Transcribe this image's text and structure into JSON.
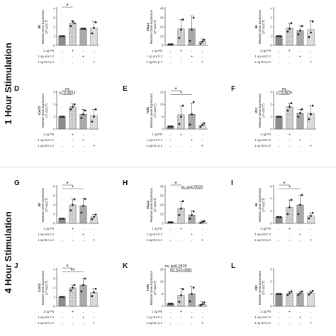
{
  "figure": {
    "row_labels": [
      "1 Hour Stimulation",
      "4 Hour Stimulation"
    ],
    "treatments": [
      "1 ug PN",
      "1 ug Ara h 2",
      "1 ug Der p 2"
    ],
    "treatment_signs": [
      [
        "-",
        "+",
        "-",
        "-"
      ],
      [
        "-",
        "-",
        "+",
        "-"
      ],
      [
        "-",
        "-",
        "-",
        "+"
      ]
    ],
    "y_axis_title": "Relative Gene Expression",
    "y_axis_unit": "(2^-ΔΔCT)",
    "bar_colors": [
      "#8c8c8c",
      "#d6d6d6",
      "#a9a9a9",
      "#e4e4e4"
    ],
    "bar_patterns": [
      "solid",
      "dots",
      "solid",
      "hatch"
    ]
  },
  "chart_data": [
    {
      "panel": "A",
      "letter": "",
      "gene": "Il8",
      "type": "bar",
      "ylim": [
        0,
        4
      ],
      "yticks": [
        "0",
        "1",
        "2",
        "3",
        "4"
      ],
      "values": [
        1.0,
        2.4,
        1.8,
        1.9
      ],
      "errors": [
        0.05,
        0.3,
        0.1,
        0.7
      ],
      "points": [
        [
          1.0,
          1.0,
          1.0
        ],
        [
          2.1,
          2.6,
          2.4
        ],
        [
          1.8,
          1.8,
          1.8
        ],
        [
          1.3,
          1.9,
          2.5
        ]
      ],
      "sig": [
        {
          "from": 0,
          "to": 1,
          "label": "*"
        }
      ]
    },
    {
      "panel": "B",
      "letter": "",
      "gene": "Mcp1",
      "type": "bar",
      "ylim": [
        0,
        40
      ],
      "yticks": [
        "0",
        "10",
        "20",
        "30",
        "40"
      ],
      "values": [
        1.0,
        18.0,
        18.0,
        4.0
      ],
      "errors": [
        0.2,
        10.0,
        14.0,
        3.0
      ],
      "points": [
        [
          1.0,
          1.0,
          1.0
        ],
        [
          8.0,
          17.0,
          28.0
        ],
        [
          5.0,
          17.0,
          30.0
        ],
        [
          2.0,
          4.0,
          6.0
        ]
      ],
      "sig": []
    },
    {
      "panel": "C",
      "letter": "",
      "gene": "Il6",
      "type": "bar",
      "ylim": [
        0,
        4
      ],
      "yticks": [
        "0",
        "1",
        "2",
        "3",
        "4"
      ],
      "values": [
        1.0,
        1.9,
        1.6,
        1.7
      ],
      "errors": [
        0.05,
        0.5,
        0.5,
        1.0
      ],
      "points": [
        [
          1.0,
          1.0,
          1.0
        ],
        [
          1.5,
          1.8,
          2.4
        ],
        [
          1.2,
          1.6,
          2.1
        ],
        [
          0.9,
          1.4,
          2.6
        ]
      ],
      "sig": []
    },
    {
      "panel": "D",
      "letter": "D",
      "gene": "Cxcl2",
      "type": "bar",
      "ylim": [
        0,
        3
      ],
      "yticks": [
        "0",
        "1",
        "2",
        "3"
      ],
      "values": [
        1.0,
        1.8,
        1.2,
        1.1
      ],
      "errors": [
        0.05,
        0.25,
        0.4,
        0.5
      ],
      "points": [
        [
          1.0,
          1.0,
          1.0
        ],
        [
          1.6,
          1.8,
          2.0
        ],
        [
          0.9,
          1.2,
          1.5
        ],
        [
          0.6,
          1.0,
          1.6
        ]
      ],
      "sig": [
        {
          "from": 0,
          "to": 1,
          "label": "ns"
        },
        {
          "from": 0,
          "to": 1,
          "label": "p=0.0624"
        }
      ]
    },
    {
      "panel": "E",
      "letter": "E",
      "gene": "Tnfa",
      "type": "bar",
      "ylim": [
        0,
        15
      ],
      "yticks": [
        "0",
        "5",
        "10",
        "15"
      ],
      "values": [
        1.0,
        5.8,
        6.0,
        1.6
      ],
      "errors": [
        0.1,
        3.5,
        4.5,
        0.8
      ],
      "points": [
        [
          1.0,
          1.0,
          1.0
        ],
        [
          2.0,
          5.0,
          9.5
        ],
        [
          1.8,
          6.0,
          11.0
        ],
        [
          0.9,
          1.6,
          2.3
        ]
      ],
      "sig": [
        {
          "from": 0,
          "to": 1,
          "label": "*"
        },
        {
          "from": 0,
          "to": 2,
          "label": "*"
        }
      ]
    },
    {
      "panel": "F",
      "letter": "F",
      "gene": "Il13",
      "type": "bar",
      "ylim": [
        0,
        3
      ],
      "yticks": [
        "0",
        "1",
        "2",
        "3"
      ],
      "values": [
        1.0,
        1.8,
        1.3,
        1.3
      ],
      "errors": [
        0.05,
        0.3,
        0.3,
        0.6
      ],
      "points": [
        [
          1.0,
          1.0,
          1.0
        ],
        [
          1.5,
          1.8,
          2.1
        ],
        [
          1.0,
          1.3,
          1.6
        ],
        [
          0.8,
          1.2,
          1.9
        ]
      ],
      "sig": [
        {
          "from": 0,
          "to": 1,
          "label": "ns"
        },
        {
          "from": 0,
          "to": 1,
          "label": "p=0.0620"
        }
      ]
    },
    {
      "panel": "G",
      "letter": "G",
      "gene": "Il8",
      "type": "bar",
      "ylim": [
        0,
        8
      ],
      "yticks": [
        "0",
        "2",
        "4",
        "6",
        "8"
      ],
      "values": [
        1.0,
        4.0,
        3.8,
        1.4
      ],
      "errors": [
        0.05,
        1.3,
        1.6,
        0.5
      ],
      "points": [
        [
          1.0,
          1.0,
          1.0
        ],
        [
          2.8,
          4.0,
          5.2
        ],
        [
          2.3,
          3.8,
          5.3
        ],
        [
          0.9,
          1.4,
          1.9
        ]
      ],
      "sig": [
        {
          "from": 0,
          "to": 1,
          "label": "*"
        },
        {
          "from": 0,
          "to": 2,
          "label": "*"
        }
      ]
    },
    {
      "panel": "H",
      "letter": "H",
      "gene": "Mcp1",
      "type": "bar",
      "ylim": [
        0,
        40
      ],
      "yticks": [
        "0",
        "10",
        "20",
        "30",
        "40"
      ],
      "values": [
        1.0,
        16.5,
        9.0,
        1.5
      ],
      "errors": [
        0.2,
        7.0,
        4.5,
        1.0
      ],
      "points": [
        [
          1.0,
          1.0,
          1.0
        ],
        [
          9.0,
          16.0,
          24.0
        ],
        [
          5.0,
          9.0,
          13.0
        ],
        [
          0.5,
          1.5,
          2.5
        ]
      ],
      "sig": [
        {
          "from": 0,
          "to": 1,
          "label": "*"
        },
        {
          "from": 1,
          "to": 3,
          "label": "ns, p=0.0526"
        }
      ]
    },
    {
      "panel": "I",
      "letter": "I",
      "gene": "Il6",
      "type": "bar",
      "ylim": [
        0,
        6
      ],
      "yticks": [
        "0",
        "2",
        "4",
        "6"
      ],
      "values": [
        1.0,
        2.6,
        3.0,
        1.2
      ],
      "errors": [
        0.05,
        1.2,
        1.6,
        0.5
      ],
      "points": [
        [
          1.0,
          1.0,
          1.0
        ],
        [
          1.5,
          2.6,
          3.8
        ],
        [
          1.5,
          3.0,
          4.6
        ],
        [
          0.8,
          1.2,
          1.7
        ]
      ],
      "sig": [
        {
          "from": 0,
          "to": 1,
          "label": "*"
        },
        {
          "from": 0,
          "to": 2,
          "label": "*"
        }
      ]
    },
    {
      "panel": "J",
      "letter": "J",
      "gene": "Cxcl2",
      "type": "bar",
      "ylim": [
        0,
        4
      ],
      "yticks": [
        "0",
        "1",
        "2",
        "3",
        "4"
      ],
      "values": [
        1.0,
        2.0,
        2.3,
        1.5
      ],
      "errors": [
        0.05,
        0.3,
        0.7,
        0.4
      ],
      "points": [
        [
          1.0,
          1.0,
          1.0
        ],
        [
          1.7,
          2.0,
          2.3
        ],
        [
          1.6,
          2.3,
          3.0
        ],
        [
          1.1,
          1.5,
          1.9
        ]
      ],
      "sig": [
        {
          "from": 0,
          "to": 1,
          "label": "*"
        },
        {
          "from": 0,
          "to": 2,
          "label": "**"
        }
      ]
    },
    {
      "panel": "K",
      "letter": "K",
      "gene": "Tnfa",
      "type": "bar",
      "ylim": [
        0,
        15
      ],
      "yticks": [
        "0",
        "5",
        "10",
        "15"
      ],
      "values": [
        1.0,
        4.5,
        5.0,
        0.8
      ],
      "errors": [
        0.1,
        2.8,
        3.0,
        1.0
      ],
      "points": [
        [
          1.0,
          1.0,
          1.0
        ],
        [
          1.8,
          4.5,
          7.0
        ],
        [
          2.0,
          5.0,
          7.5
        ],
        [
          0.3,
          0.8,
          1.5
        ]
      ],
      "sig": [
        {
          "from": 0,
          "to": 1,
          "label": "ns, p=0.0526"
        },
        {
          "from": 0,
          "to": 2,
          "label": "ns, p=0.0681"
        }
      ]
    },
    {
      "panel": "L",
      "letter": "L",
      "gene": "Il13",
      "type": "bar",
      "ylim": [
        0,
        3
      ],
      "yticks": [
        "0",
        "1",
        "2",
        "3"
      ],
      "values": [
        1.0,
        1.05,
        1.05,
        1.1
      ],
      "errors": [
        0.05,
        0.15,
        0.15,
        0.15
      ],
      "points": [
        [
          1.0,
          1.0,
          1.0
        ],
        [
          0.9,
          1.05,
          1.2
        ],
        [
          0.9,
          1.05,
          1.2
        ],
        [
          0.95,
          1.1,
          1.25
        ]
      ],
      "sig": []
    }
  ]
}
